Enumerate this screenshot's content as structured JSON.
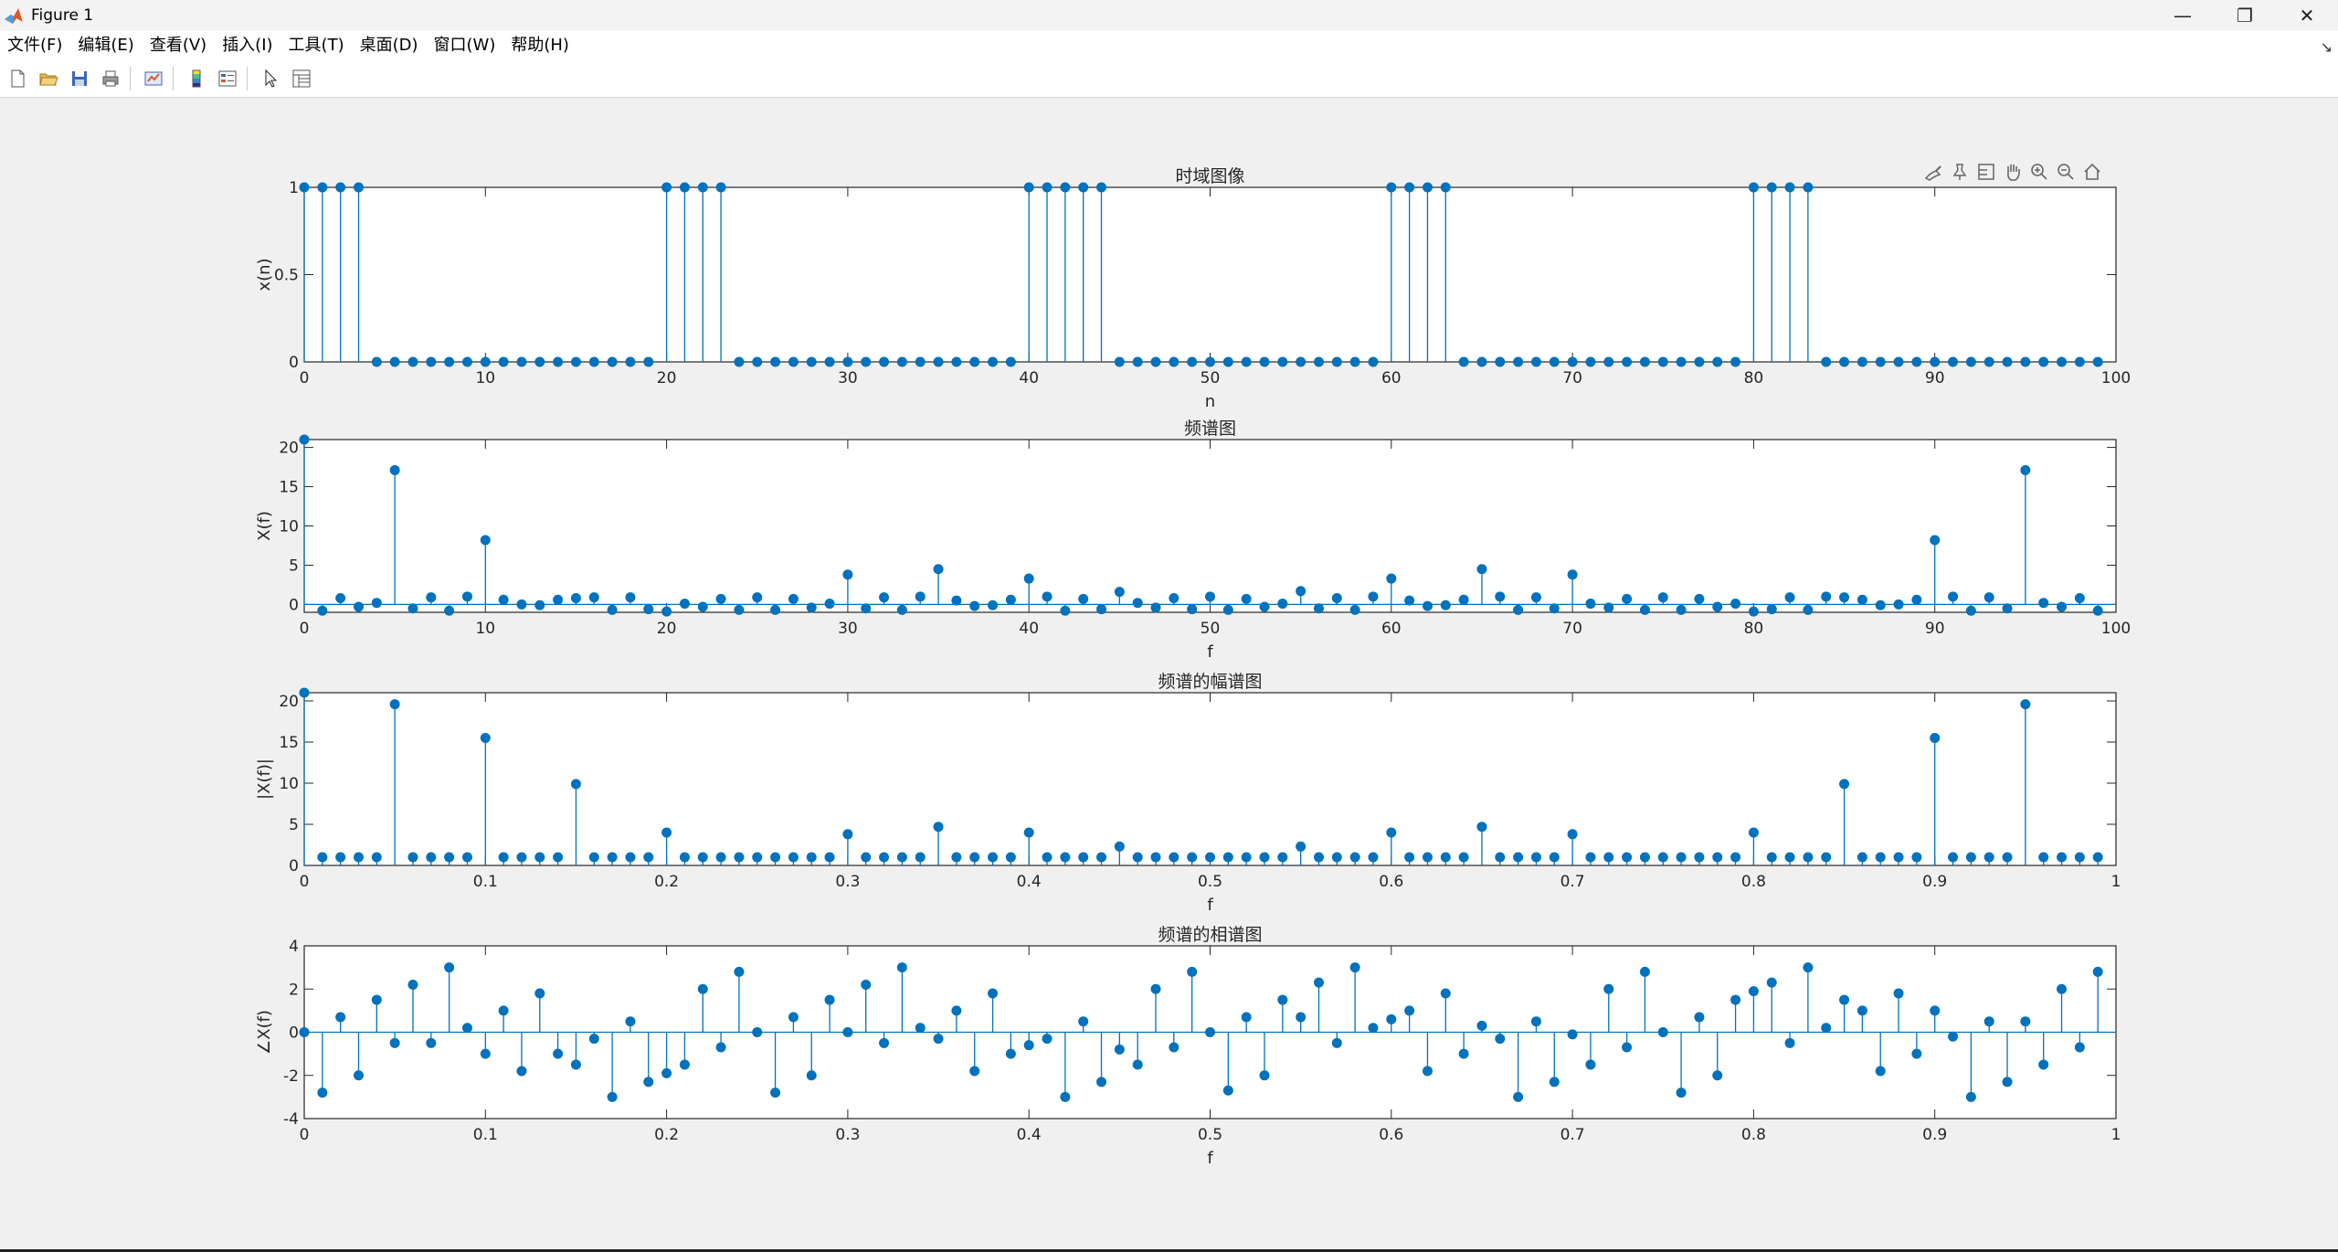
{
  "window": {
    "title": "Figure 1",
    "controls": {
      "minimize": "—",
      "restore": "❐",
      "close": "✕"
    }
  },
  "menu": [
    "文件(F)",
    "编辑(E)",
    "查看(V)",
    "插入(I)",
    "工具(T)",
    "桌面(D)",
    "窗口(W)",
    "帮助(H)"
  ],
  "toolbar_icons": [
    "new-figure-icon",
    "open-file-icon",
    "save-icon",
    "print-icon",
    "link-plot-icon",
    "colorbar-icon",
    "legend-icon",
    "edit-plot-arrow-icon",
    "property-inspector-icon"
  ],
  "axes_toolbar_icons": [
    "brush-icon",
    "data-tips-icon",
    "data-cursor-icon",
    "pan-hand-icon",
    "zoom-in-icon",
    "zoom-out-icon",
    "home-icon"
  ],
  "colors": {
    "stem": "#0072bd",
    "axes_bg": "#ffffff",
    "figure_bg": "#f0f0f0",
    "axis": "#262626"
  },
  "chart_data": [
    {
      "type": "stem",
      "title": "时域图像",
      "xlabel": "n",
      "ylabel": "x(n)",
      "xlim": [
        0,
        100
      ],
      "ylim": [
        0,
        1
      ],
      "xticks": [
        0,
        10,
        20,
        30,
        40,
        50,
        60,
        70,
        80,
        90,
        100
      ],
      "yticks": [
        0,
        0.5,
        1
      ],
      "xtick_labels": [
        "0",
        "10",
        "20",
        "30",
        "40",
        "50",
        "60",
        "70",
        "80",
        "90",
        "100"
      ],
      "ytick_labels": [
        "0",
        "0.5",
        "1"
      ],
      "x": [
        0,
        1,
        2,
        3,
        4,
        5,
        6,
        7,
        8,
        9,
        10,
        11,
        12,
        13,
        14,
        15,
        16,
        17,
        18,
        19,
        20,
        21,
        22,
        23,
        24,
        25,
        26,
        27,
        28,
        29,
        30,
        31,
        32,
        33,
        34,
        35,
        36,
        37,
        38,
        39,
        40,
        41,
        42,
        43,
        44,
        45,
        46,
        47,
        48,
        49,
        50,
        51,
        52,
        53,
        54,
        55,
        56,
        57,
        58,
        59,
        60,
        61,
        62,
        63,
        64,
        65,
        66,
        67,
        68,
        69,
        70,
        71,
        72,
        73,
        74,
        75,
        76,
        77,
        78,
        79,
        80,
        81,
        82,
        83,
        84,
        85,
        86,
        87,
        88,
        89,
        90,
        91,
        92,
        93,
        94,
        95,
        96,
        97,
        98,
        99
      ],
      "y": [
        1,
        1,
        1,
        1,
        0,
        0,
        0,
        0,
        0,
        0,
        0,
        0,
        0,
        0,
        0,
        0,
        0,
        0,
        0,
        0,
        1,
        1,
        1,
        1,
        0,
        0,
        0,
        0,
        0,
        0,
        0,
        0,
        0,
        0,
        0,
        0,
        0,
        0,
        0,
        0,
        1,
        1,
        1,
        1,
        1,
        0,
        0,
        0,
        0,
        0,
        0,
        0,
        0,
        0,
        0,
        0,
        0,
        0,
        0,
        0,
        1,
        1,
        1,
        1,
        0,
        0,
        0,
        0,
        0,
        0,
        0,
        0,
        0,
        0,
        0,
        0,
        0,
        0,
        0,
        0,
        1,
        1,
        1,
        1,
        0,
        0,
        0,
        0,
        0,
        0,
        0,
        0,
        0,
        0,
        0,
        0,
        0,
        0,
        0,
        0
      ]
    },
    {
      "type": "stem",
      "title": "频谱图",
      "xlabel": "f",
      "ylabel": "X(f)",
      "xlim": [
        0,
        100
      ],
      "ylim": [
        -1,
        21
      ],
      "xticks": [
        0,
        10,
        20,
        30,
        40,
        50,
        60,
        70,
        80,
        90,
        100
      ],
      "yticks": [
        0,
        5,
        10,
        15,
        20
      ],
      "xtick_labels": [
        "0",
        "10",
        "20",
        "30",
        "40",
        "50",
        "60",
        "70",
        "80",
        "90",
        "100"
      ],
      "ytick_labels": [
        "0",
        "5",
        "10",
        "15",
        "20"
      ],
      "x": [
        0,
        1,
        2,
        3,
        4,
        5,
        6,
        7,
        8,
        9,
        10,
        11,
        12,
        13,
        14,
        15,
        16,
        17,
        18,
        19,
        20,
        21,
        22,
        23,
        24,
        25,
        26,
        27,
        28,
        29,
        30,
        31,
        32,
        33,
        34,
        35,
        36,
        37,
        38,
        39,
        40,
        41,
        42,
        43,
        44,
        45,
        46,
        47,
        48,
        49,
        50,
        51,
        52,
        53,
        54,
        55,
        56,
        57,
        58,
        59,
        60,
        61,
        62,
        63,
        64,
        65,
        66,
        67,
        68,
        69,
        70,
        71,
        72,
        73,
        74,
        75,
        76,
        77,
        78,
        79,
        80,
        81,
        82,
        83,
        84,
        85,
        86,
        87,
        88,
        89,
        90,
        91,
        92,
        93,
        94,
        95,
        96,
        97,
        98,
        99
      ],
      "y": [
        21,
        -0.8,
        0.8,
        -0.3,
        0.2,
        17.1,
        -0.5,
        0.9,
        -0.8,
        1,
        8.2,
        0.6,
        0,
        -0.1,
        0.6,
        0.8,
        0.9,
        -0.7,
        0.9,
        -0.6,
        -0.9,
        0.1,
        -0.3,
        0.7,
        -0.7,
        0.9,
        -0.7,
        0.7,
        -0.4,
        0.1,
        3.8,
        -0.5,
        0.9,
        -0.7,
        1,
        4.5,
        0.5,
        -0.2,
        -0.1,
        0.6,
        3.3,
        1,
        -0.8,
        0.7,
        -0.6,
        1.6,
        0.2,
        -0.4,
        0.8,
        -0.6,
        1,
        -0.7,
        0.7,
        -0.3,
        0.1,
        1.7,
        -0.5,
        0.8,
        -0.7,
        1,
        3.3,
        0.5,
        -0.2,
        -0.1,
        0.6,
        4.5,
        1,
        -0.7,
        0.9,
        -0.5,
        3.8,
        0.1,
        -0.4,
        0.7,
        -0.7,
        0.9,
        -0.7,
        0.7,
        -0.3,
        0.1,
        -0.9,
        -0.6,
        0.9,
        -0.7,
        1,
        0.9,
        0.6,
        -0.1,
        0,
        0.6,
        8.2,
        1,
        -0.8,
        0.9,
        -0.5,
        17.1,
        0.2,
        -0.3,
        0.8,
        -0.8
      ]
    },
    {
      "type": "stem",
      "title": "频谱的幅谱图",
      "xlabel": "f",
      "ylabel": "|X(f)|",
      "xlim": [
        0,
        1
      ],
      "ylim": [
        0,
        21
      ],
      "xticks": [
        0,
        0.1,
        0.2,
        0.3,
        0.4,
        0.5,
        0.6,
        0.7,
        0.8,
        0.9,
        1
      ],
      "yticks": [
        0,
        5,
        10,
        15,
        20
      ],
      "xtick_labels": [
        "0",
        "0.1",
        "0.2",
        "0.3",
        "0.4",
        "0.5",
        "0.6",
        "0.7",
        "0.8",
        "0.9",
        "1"
      ],
      "ytick_labels": [
        "0",
        "5",
        "10",
        "15",
        "20"
      ],
      "x": [
        0,
        0.01,
        0.02,
        0.03,
        0.04,
        0.05,
        0.06,
        0.07,
        0.08,
        0.09,
        0.1,
        0.11,
        0.12,
        0.13,
        0.14,
        0.15,
        0.16,
        0.17,
        0.18,
        0.19,
        0.2,
        0.21,
        0.22,
        0.23,
        0.24,
        0.25,
        0.26,
        0.27,
        0.28,
        0.29,
        0.3,
        0.31,
        0.32,
        0.33,
        0.34,
        0.35,
        0.36,
        0.37,
        0.38,
        0.39,
        0.4,
        0.41,
        0.42,
        0.43,
        0.44,
        0.45,
        0.46,
        0.47,
        0.48,
        0.49,
        0.5,
        0.51,
        0.52,
        0.53,
        0.54,
        0.55,
        0.56,
        0.57,
        0.58,
        0.59,
        0.6,
        0.61,
        0.62,
        0.63,
        0.64,
        0.65,
        0.66,
        0.67,
        0.68,
        0.69,
        0.7,
        0.71,
        0.72,
        0.73,
        0.74,
        0.75,
        0.76,
        0.77,
        0.78,
        0.79,
        0.8,
        0.81,
        0.82,
        0.83,
        0.84,
        0.85,
        0.86,
        0.87,
        0.88,
        0.89,
        0.9,
        0.91,
        0.92,
        0.93,
        0.94,
        0.95,
        0.96,
        0.97,
        0.98,
        0.99
      ],
      "y": [
        21,
        1,
        1,
        1,
        1,
        19.6,
        1,
        1,
        1,
        1,
        15.5,
        1,
        1,
        1,
        1,
        9.9,
        1,
        1,
        1,
        1,
        4,
        1,
        1,
        1,
        1,
        1,
        1,
        1,
        1,
        1,
        3.8,
        1,
        1,
        1,
        1,
        4.7,
        1,
        1,
        1,
        1,
        4,
        1,
        1,
        1,
        1,
        2.3,
        1,
        1,
        1,
        1,
        1,
        1,
        1,
        1,
        1,
        2.3,
        1,
        1,
        1,
        1,
        4,
        1,
        1,
        1,
        1,
        4.7,
        1,
        1,
        1,
        1,
        3.8,
        1,
        1,
        1,
        1,
        1,
        1,
        1,
        1,
        1,
        4,
        1,
        1,
        1,
        1,
        9.9,
        1,
        1,
        1,
        1,
        15.5,
        1,
        1,
        1,
        1,
        19.6,
        1,
        1,
        1,
        1
      ]
    },
    {
      "type": "stem",
      "title": "频谱的相谱图",
      "xlabel": "f",
      "ylabel": "∠X(f)",
      "xlim": [
        0,
        1
      ],
      "ylim": [
        -4,
        4
      ],
      "xticks": [
        0,
        0.1,
        0.2,
        0.3,
        0.4,
        0.5,
        0.6,
        0.7,
        0.8,
        0.9,
        1
      ],
      "yticks": [
        -4,
        -2,
        0,
        2,
        4
      ],
      "xtick_labels": [
        "0",
        "0.1",
        "0.2",
        "0.3",
        "0.4",
        "0.5",
        "0.6",
        "0.7",
        "0.8",
        "0.9",
        "1"
      ],
      "ytick_labels": [
        "-4",
        "-2",
        "0",
        "2",
        "4"
      ],
      "x": [
        0,
        0.01,
        0.02,
        0.03,
        0.04,
        0.05,
        0.06,
        0.07,
        0.08,
        0.09,
        0.1,
        0.11,
        0.12,
        0.13,
        0.14,
        0.15,
        0.16,
        0.17,
        0.18,
        0.19,
        0.2,
        0.21,
        0.22,
        0.23,
        0.24,
        0.25,
        0.26,
        0.27,
        0.28,
        0.29,
        0.3,
        0.31,
        0.32,
        0.33,
        0.34,
        0.35,
        0.36,
        0.37,
        0.38,
        0.39,
        0.4,
        0.41,
        0.42,
        0.43,
        0.44,
        0.45,
        0.46,
        0.47,
        0.48,
        0.49,
        0.5,
        0.51,
        0.52,
        0.53,
        0.54,
        0.55,
        0.56,
        0.57,
        0.58,
        0.59,
        0.6,
        0.61,
        0.62,
        0.63,
        0.64,
        0.65,
        0.66,
        0.67,
        0.68,
        0.69,
        0.7,
        0.71,
        0.72,
        0.73,
        0.74,
        0.75,
        0.76,
        0.77,
        0.78,
        0.79,
        0.8,
        0.81,
        0.82,
        0.83,
        0.84,
        0.85,
        0.86,
        0.87,
        0.88,
        0.89,
        0.9,
        0.91,
        0.92,
        0.93,
        0.94,
        0.95,
        0.96,
        0.97,
        0.98,
        0.99
      ],
      "y": [
        0,
        -2.8,
        0.7,
        -2,
        1.5,
        -0.5,
        2.2,
        -0.5,
        3,
        0.2,
        -1,
        1,
        -1.8,
        1.8,
        -1,
        -1.5,
        -0.3,
        -3,
        0.5,
        -2.3,
        -1.9,
        -1.5,
        2,
        -0.7,
        2.8,
        0,
        -2.8,
        0.7,
        -2,
        1.5,
        0,
        2.2,
        -0.5,
        3,
        0.2,
        -0.3,
        1,
        -1.8,
        1.8,
        -1,
        -0.6,
        -0.3,
        -3,
        0.5,
        -2.3,
        -0.8,
        -1.5,
        2,
        -0.7,
        2.8,
        0,
        -2.7,
        0.7,
        -2,
        1.5,
        0.7,
        2.3,
        -0.5,
        3,
        0.2,
        0.6,
        1,
        -1.8,
        1.8,
        -1,
        0.3,
        -0.3,
        -3,
        0.5,
        -2.3,
        -0.1,
        -1.5,
        2,
        -0.7,
        2.8,
        0,
        -2.8,
        0.7,
        -2,
        1.5,
        1.9,
        2.3,
        -0.5,
        3,
        0.2,
        1.5,
        1,
        -1.8,
        1.8,
        -1,
        1,
        -0.2,
        -3,
        0.5,
        -2.3,
        0.5,
        -1.5,
        2,
        -0.7,
        2.8
      ]
    }
  ]
}
